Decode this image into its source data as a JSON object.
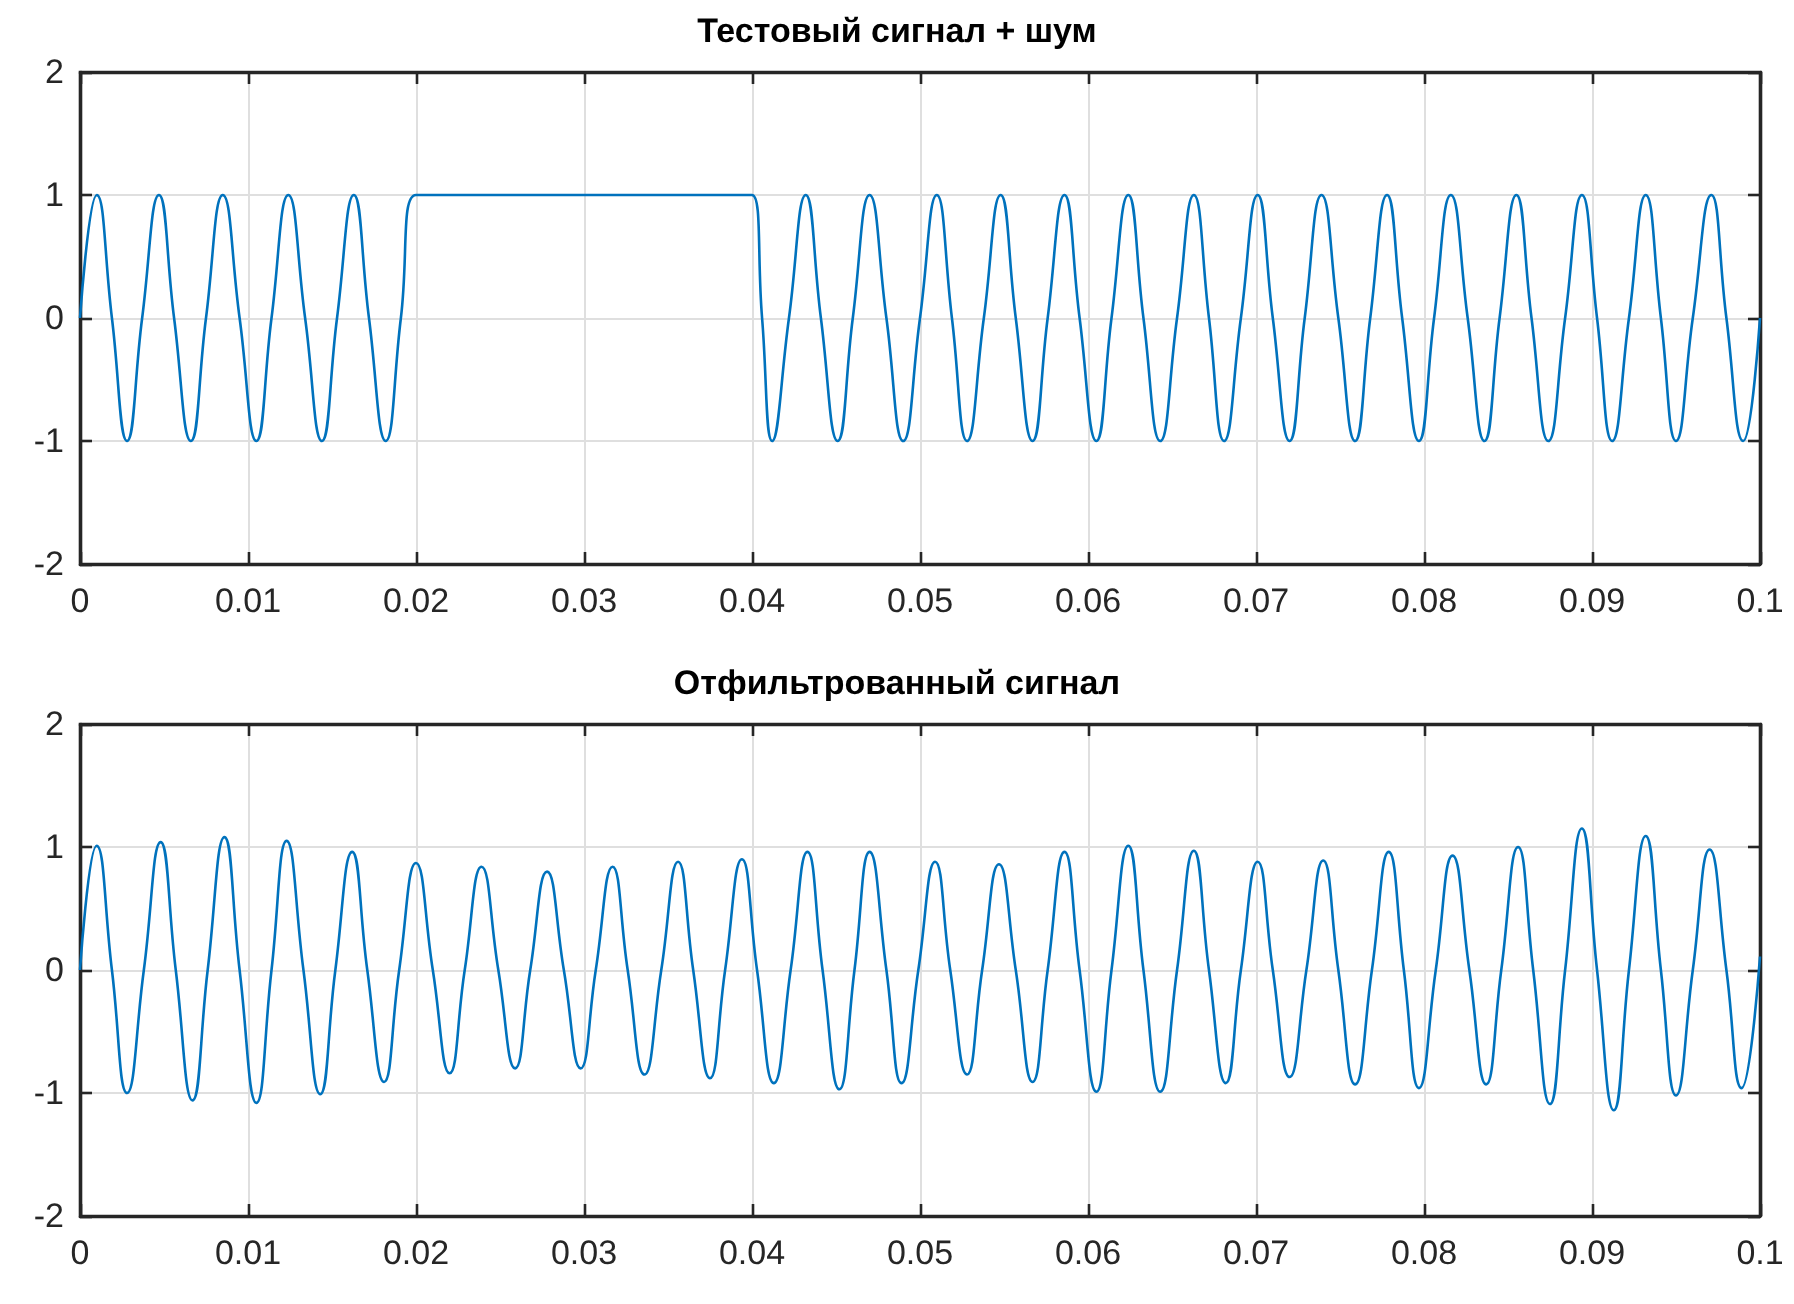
{
  "chart_data": [
    {
      "type": "line",
      "title": "Тестовый сигнал + шум",
      "color": "#0072bd",
      "x": [
        0,
        0.001,
        0.0019,
        0.0028,
        0.0037,
        0.0047,
        0.0056,
        0.0066,
        0.0075,
        0.0085,
        0.0095,
        0.0105,
        0.0114,
        0.0124,
        0.0134,
        0.0144,
        0.0153,
        0.0163,
        0.0172,
        0.0182,
        0.0191,
        0.02,
        0.04,
        0.0406,
        0.0412,
        0.0422,
        0.0432,
        0.0441,
        0.0451,
        0.046,
        0.047,
        0.048,
        0.049,
        0.05,
        0.051,
        0.0519,
        0.0528,
        0.0538,
        0.0548,
        0.0557,
        0.0567,
        0.0576,
        0.0586,
        0.0595,
        0.0605,
        0.0614,
        0.0624,
        0.0633,
        0.0643,
        0.0653,
        0.0663,
        0.0672,
        0.0681,
        0.0691,
        0.0701,
        0.071,
        0.072,
        0.0729,
        0.0739,
        0.0749,
        0.0759,
        0.0768,
        0.0778,
        0.0787,
        0.0797,
        0.0806,
        0.0816,
        0.0826,
        0.0836,
        0.0845,
        0.0855,
        0.0864,
        0.0874,
        0.0884,
        0.0894,
        0.0903,
        0.0912,
        0.0922,
        0.0932,
        0.0941,
        0.095,
        0.096,
        0.0971,
        0.098,
        0.099,
        0.1
      ],
      "values": [
        0,
        1,
        0,
        -1,
        0,
        1,
        0,
        -1,
        0,
        1,
        0,
        -1,
        0,
        1,
        0,
        -1,
        0,
        1,
        0,
        -1,
        0,
        1,
        1,
        0,
        -1,
        0,
        1,
        0,
        -1,
        0,
        1,
        0,
        -1,
        0,
        1,
        0,
        -1,
        0,
        1,
        0,
        -1,
        0,
        1,
        0,
        -1,
        0,
        1,
        0,
        -1,
        0,
        1,
        0,
        -1,
        0,
        1,
        0,
        -1,
        0,
        1,
        0,
        -1,
        0,
        1,
        0,
        -1,
        0,
        1,
        0,
        -1,
        0,
        1,
        0,
        -1,
        0,
        1,
        0,
        -1,
        0,
        1,
        0,
        -1,
        0,
        1,
        0,
        -1,
        0
      ],
      "xlim": [
        0,
        0.1
      ],
      "xticks": [
        0,
        0.01,
        0.02,
        0.03,
        0.04,
        0.05,
        0.06,
        0.07,
        0.08,
        0.09,
        0.1
      ],
      "ylim": [
        -2,
        2
      ],
      "yticks": [
        -2,
        -1,
        0,
        1,
        2
      ],
      "grid": true
    },
    {
      "type": "line",
      "title": "Отфильтрованный сигнал",
      "color": "#0072bd",
      "x": [
        0,
        0.00099,
        0.0019,
        0.0028,
        0.0038,
        0.0048,
        0.0057,
        0.0067,
        0.0076,
        0.0086,
        0.0095,
        0.0105,
        0.0114,
        0.0123,
        0.0133,
        0.0143,
        0.0152,
        0.0162,
        0.0171,
        0.0181,
        0.019,
        0.02,
        0.021,
        0.022,
        0.0229,
        0.0239,
        0.0249,
        0.0259,
        0.0268,
        0.0278,
        0.0288,
        0.0298,
        0.0307,
        0.0317,
        0.0326,
        0.0336,
        0.0346,
        0.0356,
        0.0365,
        0.0375,
        0.0384,
        0.0394,
        0.0403,
        0.0413,
        0.0423,
        0.0433,
        0.0442,
        0.0452,
        0.0461,
        0.047,
        0.048,
        0.0489,
        0.0499,
        0.0509,
        0.0518,
        0.0528,
        0.0537,
        0.0547,
        0.0557,
        0.0567,
        0.0576,
        0.0586,
        0.0595,
        0.0605,
        0.0614,
        0.0624,
        0.0633,
        0.0643,
        0.0653,
        0.0663,
        0.0672,
        0.0682,
        0.0691,
        0.0701,
        0.071,
        0.072,
        0.073,
        0.074,
        0.0749,
        0.0759,
        0.0769,
        0.0779,
        0.0788,
        0.0797,
        0.0807,
        0.0817,
        0.0827,
        0.0837,
        0.0846,
        0.0856,
        0.0865,
        0.0875,
        0.0884,
        0.0894,
        0.0903,
        0.0913,
        0.0922,
        0.0932,
        0.0941,
        0.095,
        0.096,
        0.097,
        0.098,
        0.0989,
        0.1
      ],
      "values": [
        0,
        1.01,
        0,
        -1,
        0,
        1.04,
        0,
        -1.06,
        0,
        1.08,
        0,
        -1.08,
        0,
        1.05,
        0,
        -1.01,
        0,
        0.96,
        0,
        -0.91,
        0,
        0.87,
        0,
        -0.84,
        0,
        0.84,
        0,
        -0.8,
        0,
        0.8,
        0,
        -0.8,
        0,
        0.84,
        0,
        -0.85,
        0,
        0.88,
        0,
        -0.88,
        0,
        0.9,
        0,
        -0.92,
        0,
        0.96,
        0,
        -0.97,
        0,
        0.96,
        0,
        -0.92,
        0,
        0.88,
        0,
        -0.85,
        0,
        0.86,
        0,
        -0.91,
        0,
        0.96,
        0,
        -0.99,
        0,
        1.01,
        0,
        -0.99,
        0,
        0.97,
        0,
        -0.92,
        0,
        0.88,
        0,
        -0.87,
        0,
        0.89,
        0,
        -0.93,
        0,
        0.96,
        0,
        -0.96,
        0,
        0.93,
        0,
        -0.93,
        0,
        1,
        0,
        -1.09,
        0,
        1.15,
        0,
        -1.14,
        0,
        1.09,
        0,
        -1.02,
        0,
        0.98,
        0,
        -0.96,
        0.11
      ],
      "xlim": [
        0,
        0.1
      ],
      "xticks": [
        0,
        0.01,
        0.02,
        0.03,
        0.04,
        0.05,
        0.06,
        0.07,
        0.08,
        0.09,
        0.1
      ],
      "ylim": [
        -2,
        2
      ],
      "yticks": [
        -2,
        -1,
        0,
        1,
        2
      ],
      "grid": true
    }
  ]
}
